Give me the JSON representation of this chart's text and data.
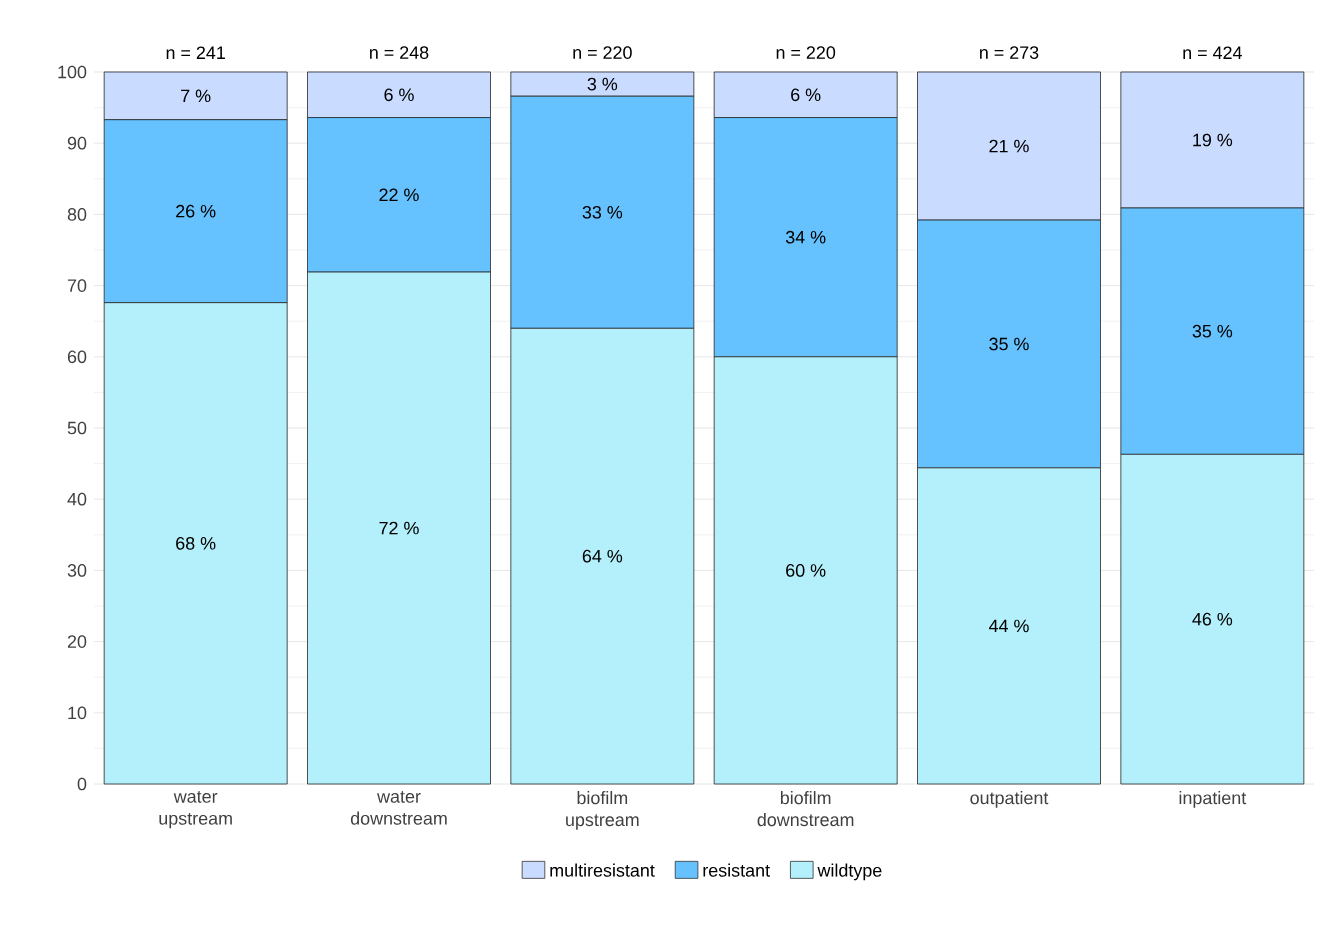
{
  "chart_data": {
    "type": "bar",
    "stacked": true,
    "categories": [
      "water upstream",
      "water downstream",
      "biofilm upstream",
      "biofilm downstream",
      "outpatient",
      "inpatient"
    ],
    "series": [
      {
        "name": "wildtype",
        "color": "#b3f0fb",
        "values": [
          67.6,
          71.9,
          64.0,
          60.0,
          44.4,
          46.3
        ],
        "value_labels": [
          "68 %",
          "72 %",
          "64 %",
          "60 %",
          "44 %",
          "46 %"
        ]
      },
      {
        "name": "resistant",
        "color": "#66c2ff",
        "values": [
          25.7,
          21.7,
          32.6,
          33.6,
          34.8,
          34.6
        ],
        "value_labels": [
          "26 %",
          "22 %",
          "33 %",
          "34 %",
          "35 %",
          "35 %"
        ]
      },
      {
        "name": "multiresistant",
        "color": "#c9dcff",
        "values": [
          6.7,
          6.4,
          3.4,
          6.4,
          20.8,
          19.1
        ],
        "value_labels": [
          "7 %",
          "6 %",
          "3 %",
          "6 %",
          "21 %",
          "19 %"
        ]
      }
    ],
    "annotations": [
      {
        "text": "n = 241",
        "x": "water upstream",
        "y": 100
      },
      {
        "text": "n = 248",
        "x": "water downstream",
        "y": 100
      },
      {
        "text": "n = 220",
        "x": "biofilm upstream",
        "y": 100
      },
      {
        "text": "n = 220",
        "x": "biofilm downstream",
        "y": 100
      },
      {
        "text": "n = 273",
        "x": "outpatient",
        "y": 100
      },
      {
        "text": "n = 424",
        "x": "inpatient",
        "y": 100
      }
    ],
    "ylim": [
      0,
      100
    ],
    "yticks": [
      0,
      10,
      20,
      30,
      40,
      50,
      60,
      70,
      80,
      90,
      100
    ],
    "grid": "y",
    "legend": "bottom"
  }
}
